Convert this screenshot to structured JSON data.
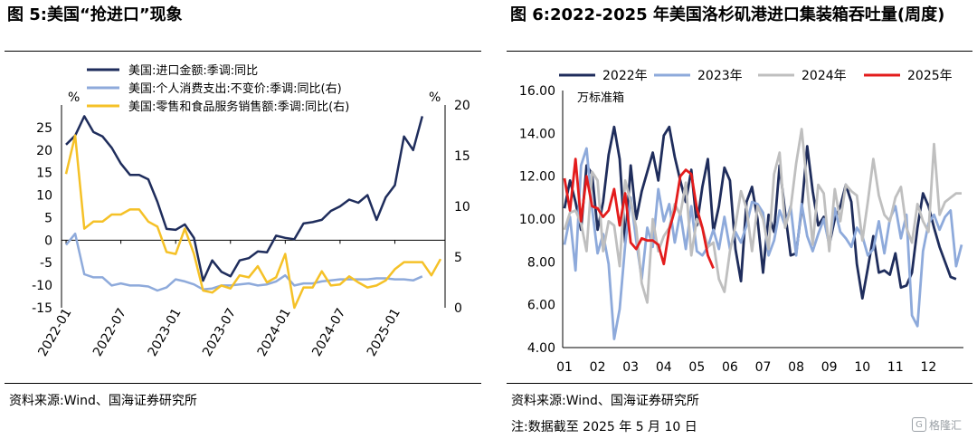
{
  "left": {
    "title": "图 5:美国“抢进口”现象",
    "source": "资料来源:Wind、国海证券研究所",
    "chart_data": {
      "type": "line",
      "left_axis_unit": "%",
      "right_axis_unit": "%",
      "left_ylim": [
        -15,
        30
      ],
      "left_yticks": [
        -15,
        -10,
        -5,
        0,
        5,
        10,
        15,
        20,
        25,
        30
      ],
      "right_ylim": [
        0,
        20
      ],
      "right_yticks": [
        0,
        5,
        10,
        15,
        20
      ],
      "x_tick_labels": [
        "2022-01",
        "2022-07",
        "2023-01",
        "2023-07",
        "2024-01",
        "2024-07",
        "2025-01"
      ],
      "series": [
        {
          "name": "美国:进口金额:季调:同比",
          "axis": "left",
          "color": "#1f2d5c",
          "values": [
            21.2,
            23.2,
            27.5,
            24,
            23,
            20.5,
            17,
            14.5,
            14.5,
            13.5,
            8.5,
            2.5,
            2.3,
            3.5,
            0.5,
            -9,
            -4.5,
            -7,
            -8,
            -4.5,
            -4,
            -2.5,
            -2.7,
            1,
            0.5,
            0.2,
            3.7,
            4,
            4.5,
            6.5,
            7.5,
            9,
            8.3,
            10,
            4.5,
            9.5,
            12.2,
            23,
            20,
            27.5
          ]
        },
        {
          "name": "美国:个人消费支出:不变价:季调:同比(右)",
          "axis": "right",
          "color": "#8eaadb",
          "values": [
            6.2,
            7.3,
            3.3,
            3,
            3,
            2.2,
            2.4,
            2.2,
            2.2,
            2.1,
            1.7,
            2,
            2.8,
            2.6,
            2.3,
            1.8,
            1.9,
            2.2,
            2.2,
            2.3,
            2.4,
            2.2,
            2.3,
            2.6,
            3.2,
            2.2,
            2.4,
            2.4,
            2.6,
            2.7,
            2.8,
            2.8,
            2.8,
            2.8,
            2.9,
            2.9,
            2.8,
            2.8,
            2.7,
            3.1
          ]
        },
        {
          "name": "美国:零售和食品服务销售额:季调:同比(右)",
          "axis": "right",
          "color": "#f5c127",
          "values": [
            13.2,
            17,
            7.8,
            8.5,
            8.5,
            9.2,
            9.2,
            9.7,
            9.7,
            8.5,
            8,
            5.5,
            5.3,
            7.8,
            5.3,
            1.7,
            1.5,
            2.2,
            1.9,
            3.2,
            3,
            4.1,
            2.5,
            3,
            5.3,
            0,
            2,
            2,
            3.6,
            2.2,
            2.3,
            3.1,
            2.5,
            2,
            2.2,
            2.7,
            3.8,
            4.5,
            4.5,
            4.5,
            3.2,
            4.8
          ]
        }
      ]
    }
  },
  "right": {
    "title": "图 6:2022-2025 年美国洛杉矶港进口集装箱吞吐量(周度)",
    "source": "资料来源:Wind、国海证券研究所",
    "note": "注:数据截至 2025 年 5 月 10 日",
    "chart_data": {
      "type": "line",
      "unit_label": "万标准箱",
      "ylim": [
        4,
        16
      ],
      "yticks": [
        "4.00",
        "6.00",
        "8.00",
        "10.00",
        "12.00",
        "14.00",
        "16.00"
      ],
      "x_tick_labels": [
        "01",
        "02",
        "03",
        "04",
        "05",
        "06",
        "07",
        "08",
        "09",
        "10",
        "11",
        "12"
      ],
      "series": [
        {
          "name": "2022年",
          "color": "#1f2d5c",
          "values": [
            10.5,
            11.8,
            10.8,
            9.5,
            12.5,
            12.1,
            9.5,
            10.8,
            13.0,
            14.3,
            12.8,
            8.9,
            12.5,
            10.0,
            11.3,
            12.2,
            13.1,
            11.8,
            13.9,
            14.3,
            12.9,
            11.8,
            10.8,
            12.3,
            9.7,
            11.5,
            12.8,
            9.4,
            10.6,
            12.4,
            11.8,
            8.6,
            7.1,
            10.8,
            11.5,
            10.0,
            7.5,
            10.2,
            9.4,
            12.5,
            10.3,
            8.3,
            8.4,
            10.5,
            13.4,
            11.3,
            9.7,
            10.1,
            8.8,
            10.0,
            10.6,
            11.6,
            10.8,
            7.9,
            6.3,
            7.7,
            9.2,
            7.5,
            7.6,
            7.4,
            8.4,
            6.8,
            6.9,
            7.5,
            9.6,
            11.2,
            10.6,
            9.6,
            8.7,
            8.0,
            7.3,
            7.2
          ]
        },
        {
          "name": "2023年",
          "color": "#8eaadb",
          "values": [
            8.8,
            10.1,
            7.6,
            12.5,
            13.3,
            10.5,
            8.4,
            9.3,
            7.9,
            4.4,
            5.8,
            8.8,
            11.0,
            9.0,
            7.2,
            9.6,
            8.7,
            11.4,
            9.9,
            10.7,
            8.9,
            10.3,
            8.6,
            10.6,
            8.5,
            8.3,
            8.7,
            9.5,
            8.6,
            10.1,
            8.6,
            9.4,
            8.9,
            9.7,
            10.8,
            10.7,
            10.3,
            8.3,
            9.0,
            10.4,
            9.7,
            10.6,
            8.3,
            10.7,
            9.2,
            8.5,
            9.3,
            10.0,
            8.8,
            10.5,
            9.4,
            9.1,
            8.7,
            9.6,
            9.2,
            8.3,
            8.6,
            9.9,
            8.4,
            10.0,
            10.6,
            9.1,
            10.2,
            5.5,
            5.0,
            8.5,
            9.8,
            10.2,
            9.5,
            10.1,
            10.4,
            7.8,
            8.8
          ]
        },
        {
          "name": "2024年",
          "color": "#bfbfbf",
          "values": [
            9.5,
            10.3,
            10.4,
            9.8,
            8.5,
            12.2,
            11.8,
            8.5,
            9.9,
            9.7,
            7.8,
            11.8,
            10.8,
            9.6,
            7.0,
            6.1,
            10.0,
            8.5,
            9.2,
            9.6,
            10.7,
            10.2,
            11.7,
            8.3,
            10.0,
            9.6,
            8.7,
            8.9,
            7.2,
            6.6,
            8.5,
            9.7,
            11.3,
            10.5,
            8.5,
            10.6,
            10.0,
            8.6,
            12.1,
            13.1,
            9.6,
            10.5,
            12.6,
            14.2,
            11.5,
            8.8,
            11.6,
            11.2,
            8.5,
            11.4,
            9.9,
            11.6,
            11.3,
            11.1,
            9.0,
            10.8,
            12.8,
            11.1,
            10.2,
            9.9,
            11.0,
            11.5,
            9.6,
            8.9,
            10.7,
            9.9,
            9.4,
            13.5,
            10.2,
            10.8,
            11.0,
            11.2,
            11.2
          ]
        },
        {
          "name": "2025年",
          "color": "#e31c1c",
          "values": [
            11.9,
            10.4,
            12.8,
            9.9,
            12.0,
            10.6,
            10.5,
            10.1,
            10.4,
            11.4,
            9.7,
            11.2,
            8.9,
            8.6,
            9.1,
            9.0,
            9.0,
            8.8,
            7.9,
            9.5,
            10.4,
            12.0,
            12.3,
            12.1,
            10.5,
            9.6,
            8.3,
            7.7
          ]
        }
      ]
    }
  }
}
